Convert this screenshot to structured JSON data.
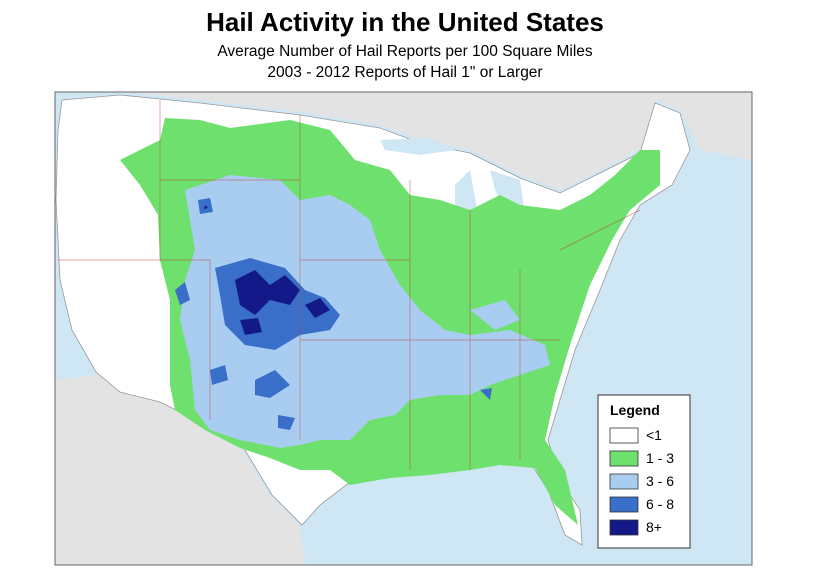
{
  "header": {
    "title": "Hail Activity in the United States",
    "subtitle": [
      "Average Number of Hail Reports per 100 Square Miles",
      "2003 - 2012 Reports of Hail 1\" or Larger"
    ]
  },
  "legend": {
    "title": "Legend",
    "items": [
      {
        "label": "<1",
        "color": "#ffffff"
      },
      {
        "label": "1 - 3",
        "color": "#6de06d"
      },
      {
        "label": "3 - 6",
        "color": "#a9cdf0"
      },
      {
        "label": "6 - 8",
        "color": "#3a6fc9"
      },
      {
        "label": "8+",
        "color": "#14198a"
      }
    ]
  }
}
